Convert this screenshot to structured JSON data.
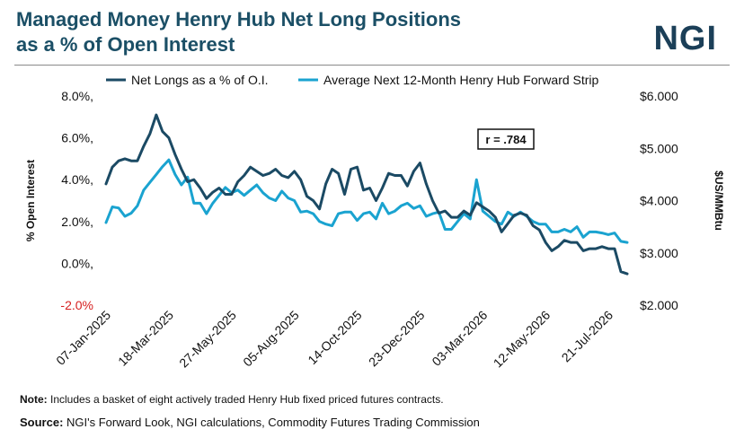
{
  "header": {
    "title_line1": "Managed Money Henry Hub Net Long Positions",
    "title_line2": "as a % of Open Interest",
    "logo": "NGI"
  },
  "footer": {
    "note_label": "Note:",
    "note_text": " Includes a basket of eight actively traded Henry Hub fixed priced futures contracts.",
    "source_label": "Source:",
    "source_text": " NGI's Forward Look, NGI calculations, Commodity Futures Trading Commission"
  },
  "chart_data": {
    "type": "line",
    "ylabel": "% Open Interest",
    "y2label": "$US/MMBtu",
    "ylim": [
      -2.0,
      8.0
    ],
    "y2lim": [
      2.0,
      6.0
    ],
    "yticks": [
      "8.0%,",
      "6.0%,",
      "4.0%,",
      "2.0%,",
      "0.0%,",
      "-2.0%"
    ],
    "yticks_values": [
      8,
      6,
      4,
      2,
      0,
      -2
    ],
    "y2ticks": [
      "$6.000",
      "$5.000",
      "$4.000",
      "$3.000",
      "$2.000"
    ],
    "y2ticks_values": [
      6,
      5,
      4,
      3,
      2
    ],
    "xticks": [
      "07-Jan-2025",
      "18-Mar-2025",
      "27-May-2025",
      "05-Aug-2025",
      "14-Oct-2025",
      "23-Dec-2025",
      "03-Mar-2026",
      "12-May-2026",
      "21-Jul-2026"
    ],
    "xtick_index": [
      0,
      10,
      20,
      30,
      40,
      50,
      60,
      70,
      80
    ],
    "annotation": "r = .784",
    "legend_position": "top",
    "colors": {
      "net_longs": "#1b4a64",
      "forward_strip": "#1aa3d0",
      "negative_tick": "#d62020"
    },
    "series": [
      {
        "name": "Net Longs as a % of O.I.",
        "axis": "left",
        "values": [
          3.8,
          4.6,
          4.9,
          5.0,
          4.9,
          4.9,
          5.6,
          6.2,
          7.1,
          6.3,
          6.0,
          5.2,
          4.5,
          3.9,
          4.0,
          3.6,
          3.1,
          3.4,
          3.6,
          3.3,
          3.3,
          3.9,
          4.2,
          4.6,
          4.4,
          4.2,
          4.3,
          4.5,
          4.2,
          4.1,
          4.4,
          4.0,
          3.2,
          3.0,
          2.6,
          3.8,
          4.5,
          4.3,
          3.3,
          4.5,
          4.6,
          3.5,
          3.6,
          3.0,
          3.6,
          4.3,
          4.2,
          4.2,
          3.7,
          4.4,
          4.8,
          3.8,
          3.0,
          2.4,
          2.5,
          2.2,
          2.2,
          2.5,
          2.3,
          2.9,
          2.7,
          2.5,
          2.2,
          1.5,
          1.9,
          2.3,
          2.4,
          2.3,
          1.8,
          1.6,
          1.0,
          0.6,
          0.8,
          1.1,
          1.0,
          1.0,
          0.6,
          0.7,
          0.7,
          0.8,
          0.7,
          0.7,
          -0.4,
          -0.5
        ]
      },
      {
        "name": "Average Next 12-Month Henry Hub Forward Strip",
        "axis": "right",
        "values": [
          3.58,
          3.88,
          3.86,
          3.7,
          3.76,
          3.9,
          4.2,
          4.35,
          4.5,
          4.65,
          4.78,
          4.5,
          4.3,
          4.45,
          3.95,
          3.95,
          3.75,
          3.95,
          4.1,
          4.25,
          4.15,
          4.2,
          4.1,
          4.2,
          4.3,
          4.15,
          4.05,
          4.0,
          4.18,
          4.05,
          4.0,
          3.78,
          3.8,
          3.75,
          3.6,
          3.55,
          3.52,
          3.75,
          3.78,
          3.78,
          3.62,
          3.75,
          3.78,
          3.65,
          3.95,
          3.75,
          3.8,
          3.9,
          3.95,
          3.85,
          3.9,
          3.7,
          3.75,
          3.78,
          3.45,
          3.45,
          3.6,
          3.75,
          3.65,
          4.4,
          3.8,
          3.7,
          3.6,
          3.55,
          3.78,
          3.7,
          3.78,
          3.7,
          3.6,
          3.55,
          3.55,
          3.4,
          3.4,
          3.45,
          3.4,
          3.5,
          3.3,
          3.4,
          3.4,
          3.38,
          3.35,
          3.38,
          3.22,
          3.2
        ]
      }
    ]
  }
}
